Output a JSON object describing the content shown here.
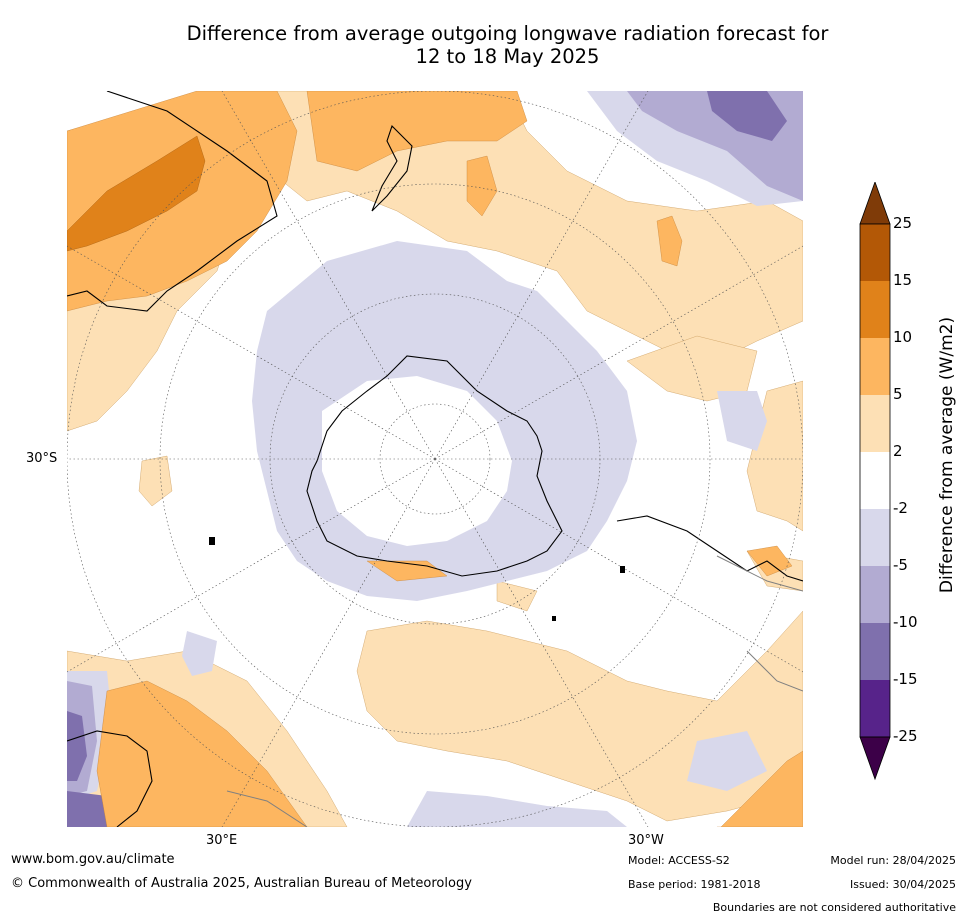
{
  "title_line1": "Difference from average outgoing longwave radiation forecast for",
  "title_line2": "12 to 18 May 2025",
  "map": {
    "projection": "south-polar-stereographic",
    "lat_label": "30°S",
    "lon_labels": {
      "east": "30°E",
      "west": "30°W"
    },
    "colors": {
      "neg25": "#3c0048",
      "neg15": "#57238a",
      "neg10": "#7f70ad",
      "neg5": "#b2abd2",
      "neg2": "#d8d8eb",
      "neutral": "#ffffff",
      "pos2": "#fde0b5",
      "pos5": "#fdb660",
      "pos10": "#e0821a",
      "pos15": "#b35806",
      "pos25": "#7f3b08",
      "coast": "#000000",
      "border": "#808080",
      "grid": "#555555"
    }
  },
  "colorbar": {
    "title": "Difference from average (W/m2)",
    "ticks": [
      "25",
      "15",
      "10",
      "5",
      "2",
      "-2",
      "-5",
      "-10",
      "-15",
      "-25"
    ]
  },
  "footer": {
    "website": "www.bom.gov.au/climate",
    "copyright": "© Commonwealth of Australia 2025, Australian Bureau of Meteorology",
    "model": "Model: ACCESS-S2",
    "base_period": "Base period: 1981-2018",
    "model_run": "Model run: 28/04/2025",
    "issued": "Issued: 30/04/2025",
    "disclaimer": "Boundaries are not considered authoritative"
  }
}
